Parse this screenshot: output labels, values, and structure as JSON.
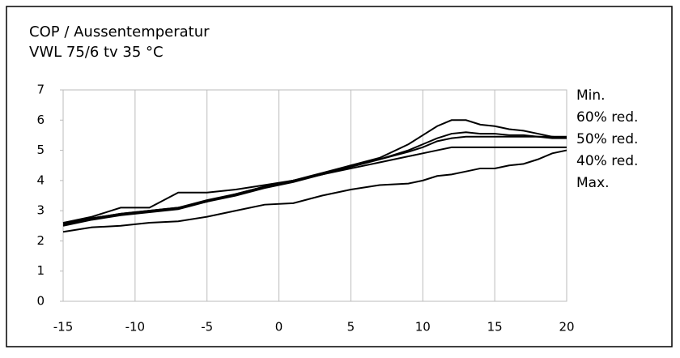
{
  "chart_data": {
    "type": "line",
    "title": [
      "COP / Aussentemperatur",
      "VWL 75/6 tv 35 °C"
    ],
    "x": [
      -15,
      -13,
      -11,
      -9,
      -7,
      -5,
      -3,
      -1,
      1,
      3,
      5,
      7,
      9,
      10,
      11,
      12,
      13,
      14,
      15,
      16,
      17,
      18,
      19,
      20
    ],
    "series": [
      {
        "name": "Min.",
        "color": "#000000",
        "values": [
          2.6,
          2.75,
          2.9,
          3.0,
          3.1,
          3.3,
          3.55,
          3.8,
          4.0,
          4.2,
          4.5,
          4.75,
          5.2,
          5.5,
          5.8,
          6.0,
          6.0,
          5.85,
          5.8,
          5.7,
          5.65,
          5.55,
          5.45,
          5.4
        ]
      },
      {
        "name": "60% red.",
        "color": "#000000",
        "values": [
          2.5,
          2.7,
          2.85,
          2.95,
          3.05,
          3.3,
          3.5,
          3.75,
          3.95,
          4.2,
          4.45,
          4.7,
          5.0,
          5.2,
          5.4,
          5.55,
          5.6,
          5.55,
          5.55,
          5.5,
          5.5,
          5.45,
          5.4,
          5.4
        ]
      },
      {
        "name": "50% red.",
        "color": "#000000",
        "values": [
          2.55,
          2.75,
          2.9,
          3.0,
          3.1,
          3.35,
          3.55,
          3.8,
          4.0,
          4.25,
          4.5,
          4.7,
          4.95,
          5.1,
          5.3,
          5.4,
          5.45,
          5.45,
          5.45,
          5.45,
          5.45,
          5.45,
          5.45,
          5.45
        ]
      },
      {
        "name": "40% red.",
        "color": "#000000",
        "values": [
          2.6,
          2.8,
          3.1,
          3.1,
          3.6,
          3.6,
          3.7,
          3.85,
          4.0,
          4.2,
          4.4,
          4.6,
          4.8,
          4.9,
          5.0,
          5.1,
          5.1,
          5.1,
          5.1,
          5.1,
          5.1,
          5.1,
          5.1,
          5.1
        ]
      },
      {
        "name": "Max.",
        "color": "#000000",
        "values": [
          2.3,
          2.45,
          2.5,
          2.6,
          2.65,
          2.8,
          3.0,
          3.2,
          3.25,
          3.5,
          3.7,
          3.85,
          3.9,
          4.0,
          4.15,
          4.2,
          4.3,
          4.4,
          4.4,
          4.5,
          4.55,
          4.7,
          4.9,
          5.0
        ]
      }
    ],
    "xlim": [
      -15,
      20
    ],
    "xticks": [
      -15,
      -10,
      -5,
      0,
      5,
      10,
      15,
      20
    ],
    "ylim": [
      0,
      7
    ],
    "yticks": [
      0,
      1,
      2,
      3,
      4,
      5,
      6,
      7
    ],
    "grid": true
  }
}
